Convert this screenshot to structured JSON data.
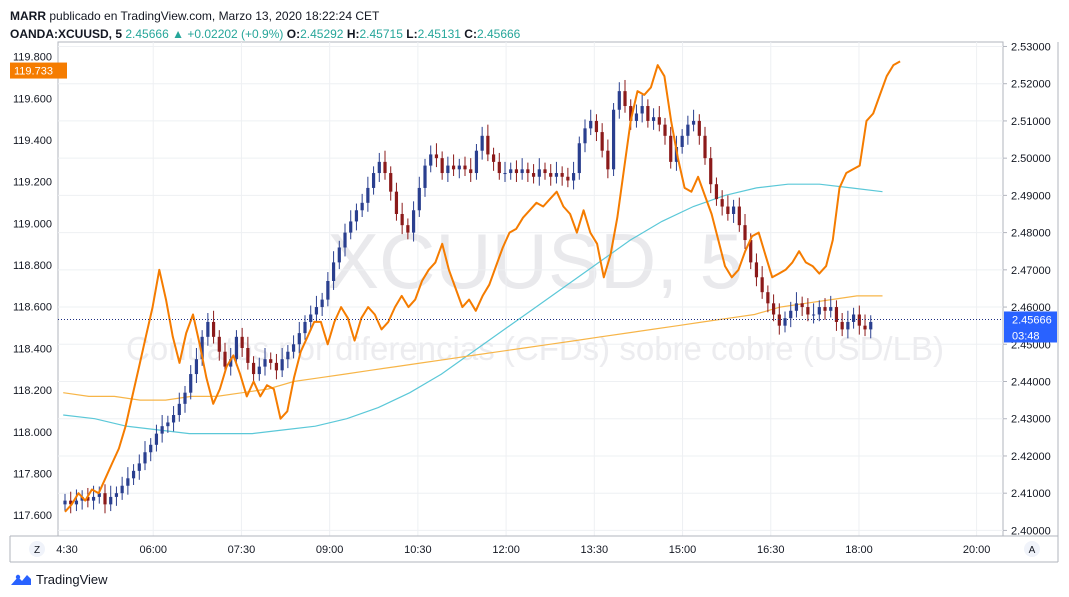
{
  "header": {
    "user": "MARR",
    "published": "publicado en TradingView.com, Marzo 13, 2020 18:22:24 CET",
    "symbol": "OANDA:XCUUSD, 5",
    "last": "2.45666",
    "change_arrow": "▲",
    "change": "+0.02202 (+0.9%)",
    "o_label": "O:",
    "o": "2.45292",
    "h_label": "H:",
    "h": "2.45715",
    "l_label": "L:",
    "l": "2.45131",
    "c_label": "C:",
    "c": "2.45666"
  },
  "watermark": {
    "symbol": "XCUUSD, 5",
    "description": "Contratos por diferencias (CFDs) sobre cobre (USD/LB)"
  },
  "footer": {
    "brand": "TradingView",
    "left_button": "Z",
    "right_button": "A"
  },
  "colors": {
    "up": "#2a3f8f",
    "down": "#8b1a1a",
    "orange": "#f57c00",
    "ma_fast": "#5bc8d8",
    "ma_slow": "#f7b548",
    "price_line": "#1c2d80",
    "price_tag": "#2962ff",
    "left_tag": "#f57c00"
  },
  "chart_data": {
    "type": "candlestick",
    "title": "OANDA:XCUUSD, 5",
    "x_ticks": [
      "4:30",
      "06:00",
      "07:30",
      "09:00",
      "10:30",
      "12:00",
      "13:30",
      "15:00",
      "16:30",
      "18:00",
      "20:00"
    ],
    "x_range_hours": [
      4.5,
      20.5
    ],
    "left_axis": {
      "ticks": [
        "119.800",
        "119.600",
        "119.400",
        "119.200",
        "119.000",
        "118.800",
        "118.600",
        "118.400",
        "118.200",
        "118.000",
        "117.800",
        "117.600"
      ],
      "range": [
        117.5,
        119.87
      ],
      "last_value_tag": "119.733"
    },
    "right_axis": {
      "ticks": [
        "2.53000",
        "2.52000",
        "2.51000",
        "2.50000",
        "2.49000",
        "2.48000",
        "2.47000",
        "2.46000",
        "2.45000",
        "2.44000",
        "2.43000",
        "2.42000",
        "2.41000",
        "2.40000"
      ],
      "range": [
        2.3985,
        2.5312
      ],
      "last_price_tag": "2.45666",
      "countdown_tag": "03:48",
      "last_price": 2.45666
    },
    "candles_close": [
      2.408,
      2.407,
      2.408,
      2.409,
      2.408,
      2.409,
      2.41,
      2.407,
      2.409,
      2.41,
      2.412,
      2.414,
      2.416,
      2.418,
      2.421,
      2.423,
      2.426,
      2.428,
      2.429,
      2.431,
      2.434,
      2.437,
      2.442,
      2.446,
      2.452,
      2.456,
      2.452,
      2.448,
      2.444,
      2.446,
      2.452,
      2.449,
      2.445,
      2.442,
      2.444,
      2.446,
      2.445,
      2.443,
      2.446,
      2.448,
      2.45,
      2.453,
      2.456,
      2.458,
      2.46,
      2.462,
      2.467,
      2.472,
      2.476,
      2.48,
      2.483,
      2.486,
      2.488,
      2.492,
      2.496,
      2.499,
      2.496,
      2.491,
      2.485,
      2.482,
      2.48,
      2.486,
      2.492,
      2.498,
      2.501,
      2.5,
      2.496,
      2.498,
      2.497,
      2.498,
      2.497,
      2.496,
      2.502,
      2.506,
      2.501,
      2.499,
      2.496,
      2.496,
      2.497,
      2.496,
      2.497,
      2.496,
      2.495,
      2.497,
      2.496,
      2.495,
      2.496,
      2.495,
      2.494,
      2.496,
      2.504,
      2.508,
      2.51,
      2.507,
      2.502,
      2.497,
      2.513,
      2.518,
      2.514,
      2.51,
      2.512,
      2.514,
      2.51,
      2.511,
      2.509,
      2.506,
      2.499,
      2.503,
      2.506,
      2.509,
      2.51,
      2.506,
      2.5,
      2.493,
      2.489,
      2.487,
      2.485,
      2.487,
      2.482,
      2.478,
      2.472,
      2.468,
      2.464,
      2.461,
      2.458,
      2.455,
      2.457,
      2.459,
      2.461,
      2.46,
      2.458,
      2.458,
      2.46,
      2.459,
      2.46,
      2.456,
      2.454,
      2.456,
      2.458,
      2.455,
      2.454,
      2.456
    ],
    "orange_line_right_scale": [
      2.405,
      2.407,
      2.41,
      2.408,
      2.411,
      2.41,
      2.414,
      2.418,
      2.422,
      2.428,
      2.436,
      2.444,
      2.452,
      2.46,
      2.47,
      2.462,
      2.452,
      2.445,
      2.453,
      2.458,
      2.45,
      2.441,
      2.434,
      2.438,
      2.444,
      2.447,
      2.442,
      2.436,
      2.44,
      2.436,
      2.439,
      2.438,
      2.43,
      2.432,
      2.441,
      2.448,
      2.452,
      2.456,
      2.456,
      2.45,
      2.456,
      2.46,
      2.457,
      2.451,
      2.457,
      2.46,
      2.458,
      2.454,
      2.456,
      2.46,
      2.463,
      2.46,
      2.462,
      2.467,
      2.47,
      2.472,
      2.477,
      2.47,
      2.465,
      2.46,
      2.462,
      2.459,
      2.463,
      2.466,
      2.471,
      2.476,
      2.48,
      2.481,
      2.484,
      2.486,
      2.488,
      2.487,
      2.489,
      2.491,
      2.487,
      2.485,
      2.48,
      2.486,
      2.48,
      2.477,
      2.468,
      2.474,
      2.484,
      2.497,
      2.51,
      2.518,
      2.517,
      2.519,
      2.525,
      2.522,
      2.51,
      2.5,
      2.492,
      2.491,
      2.495,
      2.49,
      2.485,
      2.478,
      2.471,
      2.468,
      2.47,
      2.475,
      2.479,
      2.48,
      2.474,
      2.468,
      2.469,
      2.47,
      2.472,
      2.475,
      2.472,
      2.471,
      2.469,
      2.471,
      2.478,
      2.492,
      2.496,
      2.497,
      2.498,
      2.51,
      2.512,
      2.517,
      2.522,
      2.525,
      2.526
    ],
    "ma_fast_right_scale": [
      2.431,
      2.43,
      2.428,
      2.427,
      2.426,
      2.426,
      2.426,
      2.427,
      2.428,
      2.43,
      2.433,
      2.437,
      2.442,
      2.448,
      2.454,
      2.46,
      2.466,
      2.472,
      2.478,
      2.483,
      2.487,
      2.49,
      2.492,
      2.493,
      2.493,
      2.492,
      2.491
    ],
    "ma_slow_right_scale": [
      2.437,
      2.436,
      2.436,
      2.435,
      2.435,
      2.436,
      2.436,
      2.437,
      2.438,
      2.44,
      2.441,
      2.442,
      2.443,
      2.444,
      2.445,
      2.446,
      2.447,
      2.448,
      2.449,
      2.45,
      2.451,
      2.452,
      2.453,
      2.454,
      2.455,
      2.456,
      2.457,
      2.458,
      2.46,
      2.461,
      2.462,
      2.463,
      2.463
    ]
  }
}
